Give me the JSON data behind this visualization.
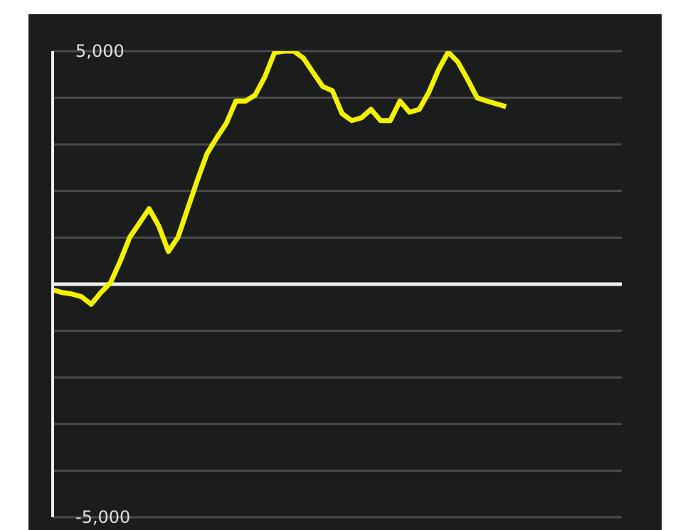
{
  "chart_data": {
    "type": "line",
    "categories": [
      null,
      null,
      null,
      null,
      null,
      null,
      null,
      null,
      null,
      null,
      null,
      null,
      null,
      null,
      null,
      null,
      null,
      null,
      null,
      null,
      null,
      null,
      null,
      null,
      null,
      null,
      null,
      null,
      null,
      null,
      null,
      null,
      null,
      null,
      null,
      null,
      null,
      null,
      null,
      null,
      null,
      null,
      null,
      null,
      null,
      null,
      null,
      null,
      null,
      null,
      null,
      null,
      null,
      null,
      null,
      null,
      null,
      null,
      null,
      null
    ],
    "series": [
      {
        "color": "#f2f200",
        "values": [
          -120,
          -180,
          -210,
          -270,
          -430,
          -180,
          30,
          490,
          1010,
          1310,
          1620,
          1250,
          700,
          1010,
          1620,
          2230,
          2800,
          3140,
          3450,
          3930,
          3930,
          4060,
          4450,
          4970,
          5000,
          5000,
          4850,
          4540,
          4240,
          4150,
          3660,
          3510,
          3570,
          3750,
          3510,
          3510,
          3930,
          3690,
          3750,
          4120,
          4600,
          4980,
          4770,
          4400,
          4000,
          3930,
          3870,
          3810,
          null,
          null,
          null,
          null,
          null,
          null,
          null,
          null,
          null,
          null,
          null,
          null
        ]
      }
    ],
    "ylim": [
      -5000,
      5000
    ],
    "yticks": [
      {
        "value": 5000,
        "label": "5,000"
      },
      {
        "value": 4000,
        "label": null
      },
      {
        "value": 3000,
        "label": null
      },
      {
        "value": 2000,
        "label": null
      },
      {
        "value": 1000,
        "label": null
      },
      {
        "value": 0,
        "label": null
      },
      {
        "value": -1000,
        "label": null
      },
      {
        "value": -2000,
        "label": null
      },
      {
        "value": -3000,
        "label": null
      },
      {
        "value": -4000,
        "label": null
      },
      {
        "value": -5000,
        "label": "-5,000"
      }
    ],
    "ref_lines": [
      {
        "axis": "y",
        "value": 0,
        "color": "#f0f0f0"
      }
    ],
    "grid": "y",
    "tick_labels": "y",
    "marker": "none",
    "line_style": "solid",
    "legend": false
  }
}
